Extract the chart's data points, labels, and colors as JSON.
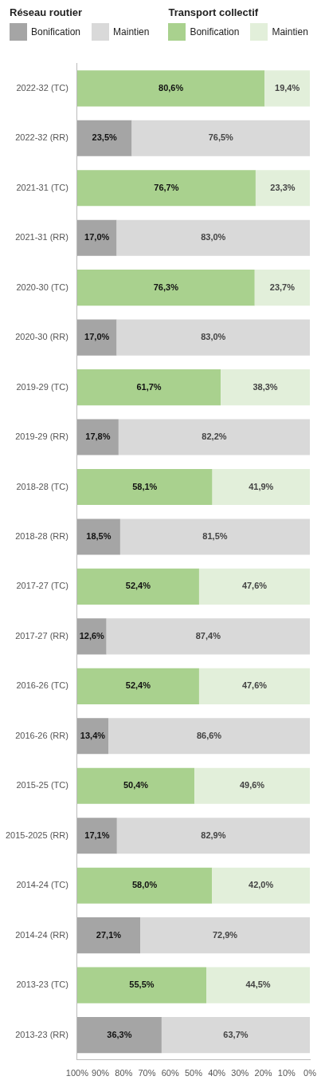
{
  "chart_data": {
    "type": "bar",
    "orientation": "horizontal",
    "stacked": true,
    "legend": "top",
    "annotations": [
      "Réseau routier",
      "Transport collectif"
    ],
    "categories": [
      "2022-32 (TC)",
      "2022-32 (RR)",
      "2021-31 (TC)",
      "2021-31 (RR)",
      "2020-30 (TC)",
      "2020-30 (RR)",
      "2019-29 (TC)",
      "2019-29 (RR)",
      "2018-28 (TC)",
      "2018-28 (RR)",
      "2017-27 (TC)",
      "2017-27 (RR)",
      "2016-26 (TC)",
      "2016-26 (RR)",
      "2015-25 (TC)",
      "2015-2025 (RR)",
      "2014-24 (TC)",
      "2014-24 (RR)",
      "2013-23 (TC)",
      "2013-23 (RR)"
    ],
    "xlim": [
      100,
      0
    ],
    "xticks": [
      {
        "value": 100,
        "label": "100%"
      },
      {
        "value": 90,
        "label": "90%"
      },
      {
        "value": 80,
        "label": "80%"
      },
      {
        "value": 70,
        "label": "70%"
      },
      {
        "value": 60,
        "label": "60%"
      },
      {
        "value": 50,
        "label": "50%"
      },
      {
        "value": 40,
        "label": "40%"
      },
      {
        "value": 30,
        "label": "30%"
      },
      {
        "value": 20,
        "label": "20%"
      },
      {
        "value": 10,
        "label": "10%"
      },
      {
        "value": 0,
        "label": "0%"
      }
    ],
    "grid": false,
    "series": [
      {
        "name": "Maintien",
        "color": "#d9d9d9",
        "values": [
          null,
          76.5,
          null,
          83.0,
          null,
          83.0,
          null,
          82.2,
          null,
          81.5,
          null,
          87.4,
          null,
          86.6,
          null,
          82.9,
          null,
          72.9,
          null,
          63.7
        ],
        "value_labels": [
          null,
          "76,5%",
          null,
          "83,0%",
          null,
          "83,0%",
          null,
          "82,2%",
          null,
          "81,5%",
          null,
          "87,4%",
          null,
          "86,6%",
          null,
          "82,9%",
          null,
          "72,9%",
          null,
          "63,7%"
        ]
      },
      {
        "name": "Bonification",
        "color": "#a5a5a5",
        "values": [
          null,
          23.5,
          null,
          17.0,
          null,
          17.0,
          null,
          17.8,
          null,
          18.5,
          null,
          12.6,
          null,
          13.4,
          null,
          17.1,
          null,
          27.1,
          null,
          36.3
        ],
        "value_labels": [
          null,
          "23,5%",
          null,
          "17,0%",
          null,
          "17,0%",
          null,
          "17,8%",
          null,
          "18,5%",
          null,
          "12,6%",
          null,
          "13,4%",
          null,
          "17,1%",
          null,
          "27,1%",
          null,
          "36,3%"
        ]
      },
      {
        "name": "Maintien",
        "color": "#e2efda",
        "values": [
          19.4,
          null,
          23.3,
          null,
          23.7,
          null,
          38.3,
          null,
          41.9,
          null,
          47.6,
          null,
          47.6,
          null,
          49.6,
          null,
          42.0,
          null,
          44.5,
          null
        ],
        "value_labels": [
          "19,4%",
          null,
          "23,3%",
          null,
          "23,7%",
          null,
          "38,3%",
          null,
          "41,9%",
          null,
          "47,6%",
          null,
          "47,6%",
          null,
          "49,6%",
          null,
          "42,0%",
          null,
          "44,5%",
          null
        ]
      },
      {
        "name": "Bonification",
        "color": "#a9d18e",
        "values": [
          80.6,
          null,
          76.7,
          null,
          76.3,
          null,
          61.7,
          null,
          58.1,
          null,
          52.4,
          null,
          52.4,
          null,
          50.4,
          null,
          58.0,
          null,
          55.5,
          null
        ],
        "value_labels": [
          "80,6%",
          null,
          "76,7%",
          null,
          "76,3%",
          null,
          "61,7%",
          null,
          "58,1%",
          null,
          "52,4%",
          null,
          "52,4%",
          null,
          "50,4%",
          null,
          "58,0%",
          null,
          "55,5%",
          null
        ]
      }
    ]
  }
}
